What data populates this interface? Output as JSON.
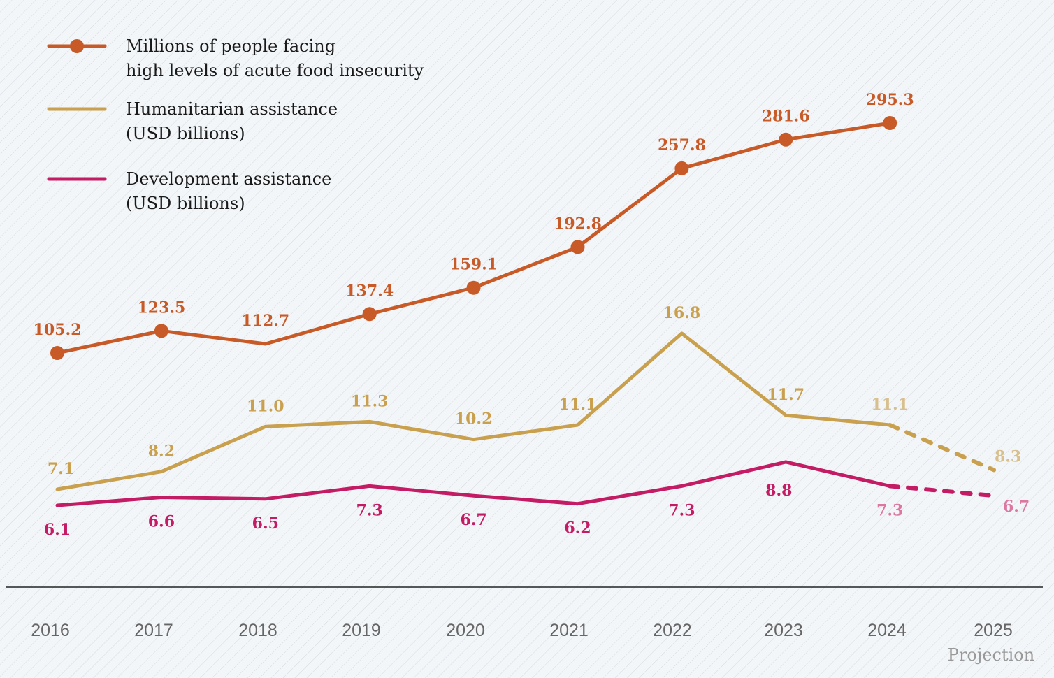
{
  "chart_data": {
    "type": "line",
    "categories": [
      "2016",
      "2017",
      "2018",
      "2019",
      "2020",
      "2021",
      "2022",
      "2023",
      "2024",
      "2025"
    ],
    "projection_label": "Projection",
    "projection_start": "2024",
    "grid": false,
    "legend_position": "top-left",
    "series": [
      {
        "name": "Millions of people facing high levels of acute food insecurity",
        "legend_lines": [
          "Millions of people facing",
          "high levels of acute food insecurity"
        ],
        "color": "#c85a28",
        "markers": true,
        "values": [
          105.2,
          123.5,
          112.7,
          137.4,
          159.1,
          192.8,
          257.8,
          281.6,
          295.3,
          null
        ],
        "labels": [
          "105.2",
          "123.5",
          "112.7",
          "137.4",
          "159.1",
          "192.8",
          "257.8",
          "281.6",
          "295.3",
          null
        ]
      },
      {
        "name": "Humanitarian assistance (USD billions)",
        "legend_lines": [
          "Humanitarian assistance",
          "(USD billions)"
        ],
        "color": "#c9a04e",
        "projected_color": "#d8c08e",
        "markers": false,
        "values": [
          7.1,
          8.2,
          11.0,
          11.3,
          10.2,
          11.1,
          16.8,
          11.7,
          11.1,
          8.3
        ],
        "labels": [
          "7.1",
          "8.2",
          "11.0",
          "11.3",
          "10.2",
          "11.1",
          "16.8",
          "11.7",
          "11.1",
          "8.3"
        ]
      },
      {
        "name": "Development assistance (USD billions)",
        "legend_lines": [
          "Development assistance",
          "(USD billions)"
        ],
        "color": "#c41c64",
        "projected_color": "#dc77a2",
        "markers": false,
        "values": [
          6.1,
          6.6,
          6.5,
          7.3,
          6.7,
          6.2,
          7.3,
          8.8,
          7.3,
          6.7
        ],
        "labels": [
          "6.1",
          "6.6",
          "6.5",
          "7.3",
          "6.7",
          "6.2",
          "7.3",
          "8.8",
          "7.3",
          "6.7"
        ]
      }
    ]
  }
}
